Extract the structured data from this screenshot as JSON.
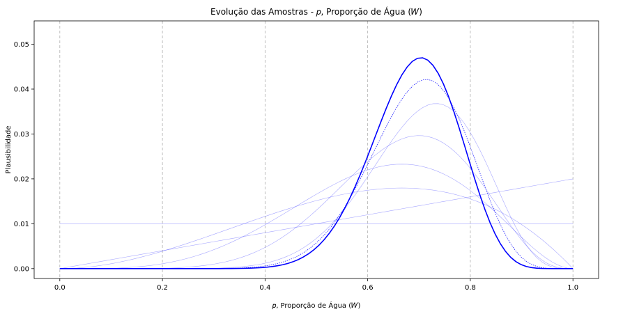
{
  "chart_data": {
    "type": "line",
    "title": "Evolução das Amostras - 𝑝, Proporção de Água (𝑊)",
    "xlabel": "𝑝, Proporção de Água (𝑊)",
    "ylabel": "Plausibilidade",
    "xlim": [
      -0.05,
      1.05
    ],
    "ylim": [
      -0.0022,
      0.0552
    ],
    "x_ticks": [
      "0.0",
      "0.2",
      "0.4",
      "0.6",
      "0.8",
      "1.0"
    ],
    "y_ticks": [
      "0.00",
      "0.01",
      "0.02",
      "0.03",
      "0.04",
      "0.05"
    ],
    "grid": "vertical dashed",
    "line_color": "#0000ff",
    "series": [
      {
        "water": 0,
        "trials": 0,
        "style": "faint"
      },
      {
        "water": 1,
        "trials": 1,
        "style": "faint"
      },
      {
        "water": 2,
        "trials": 3,
        "style": "faint"
      },
      {
        "water": 4,
        "trials": 6,
        "style": "faint"
      },
      {
        "water": 7,
        "trials": 10,
        "style": "faint"
      },
      {
        "water": 11,
        "trials": 15,
        "style": "faint"
      },
      {
        "water": 15,
        "trials": 21,
        "style": "dotted"
      },
      {
        "water": 19,
        "trials": 27,
        "style": "bold"
      }
    ]
  }
}
